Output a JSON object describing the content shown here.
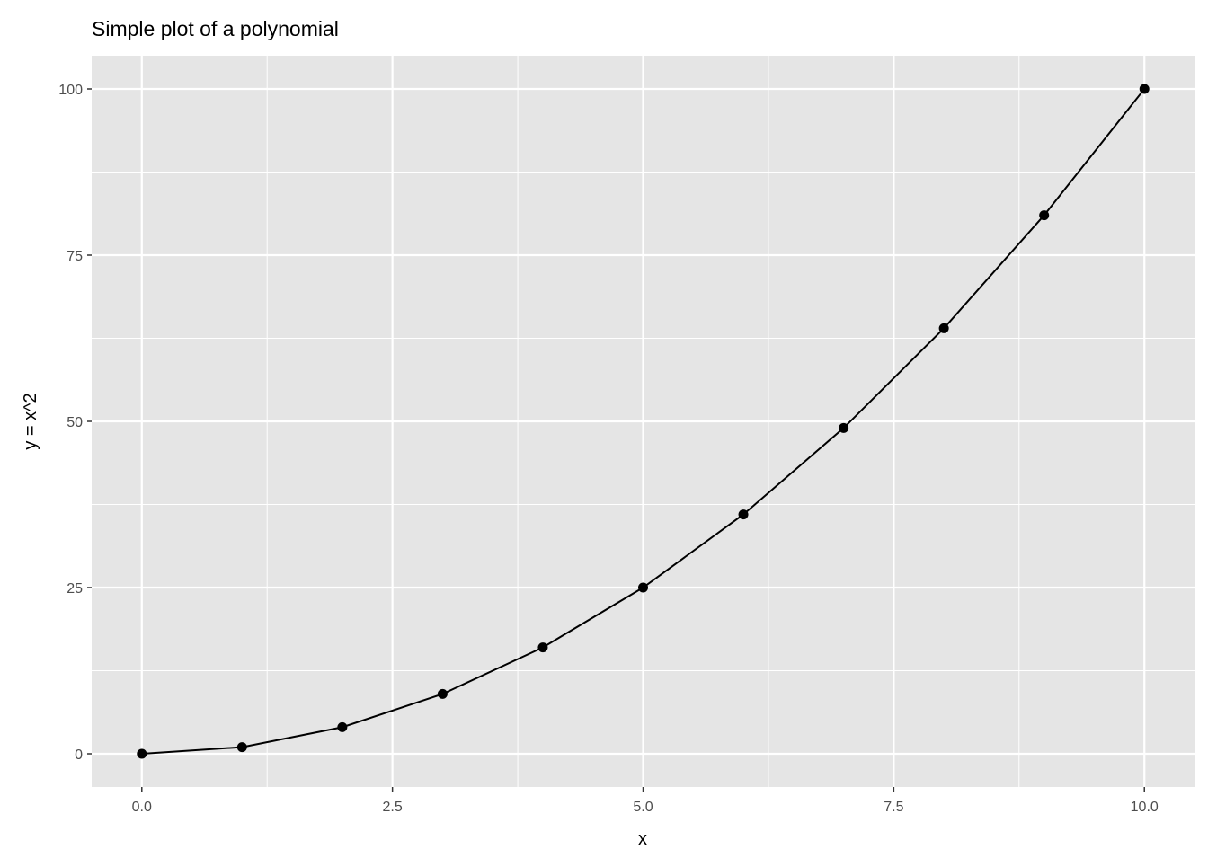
{
  "chart_data": {
    "type": "line",
    "title": "Simple plot of a polynomial",
    "xlabel": "x",
    "ylabel": "y = x^2",
    "x": [
      0,
      1,
      2,
      3,
      4,
      5,
      6,
      7,
      8,
      9,
      10
    ],
    "y": [
      0,
      1,
      4,
      9,
      16,
      25,
      36,
      49,
      64,
      81,
      100
    ],
    "markers": true,
    "xlim": [
      -0.5,
      10.5
    ],
    "ylim": [
      -5,
      105
    ],
    "xticks": [
      0,
      2.5,
      5,
      7.5,
      10
    ],
    "xtick_labels": [
      "0.0",
      "2.5",
      "5.0",
      "7.5",
      "10.0"
    ],
    "yticks": [
      0,
      25,
      50,
      75,
      100
    ],
    "ytick_labels": [
      "0",
      "25",
      "50",
      "75",
      "100"
    ],
    "grid": true,
    "colors": {
      "panel": "#e5e5e5",
      "grid": "#ffffff",
      "line": "#000000",
      "tick_text": "#4d4d4d"
    }
  }
}
